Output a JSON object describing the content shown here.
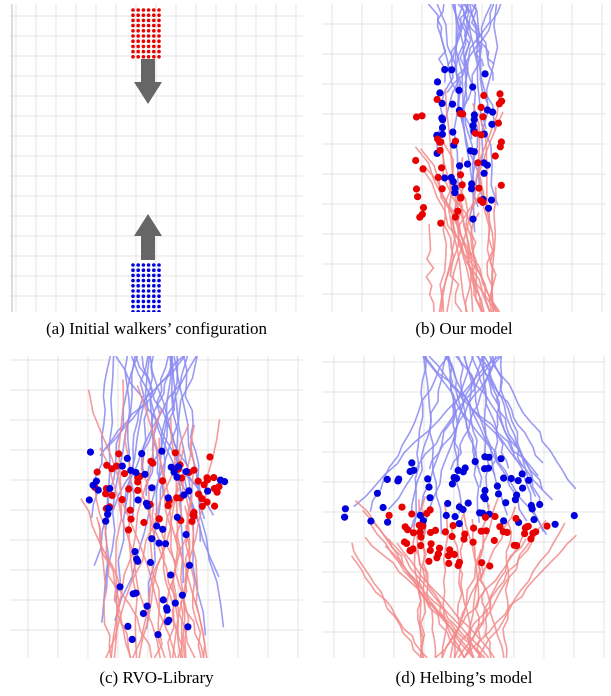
{
  "figure": {
    "panels": [
      {
        "id": "a",
        "caption": "(a)  Initial walkers’ configuration"
      },
      {
        "id": "b",
        "caption": "(b)  Our model"
      },
      {
        "id": "c",
        "caption": "(c)  RVO-Library"
      },
      {
        "id": "d",
        "caption": "(d)  Helbing’s model"
      }
    ]
  },
  "colors": {
    "red_agent": "#e80000",
    "blue_agent": "#0000dd",
    "red_trail": "#f28a8a",
    "blue_trail": "#8a8af2",
    "arrow": "#666666",
    "grid": "#dddddd"
  }
}
